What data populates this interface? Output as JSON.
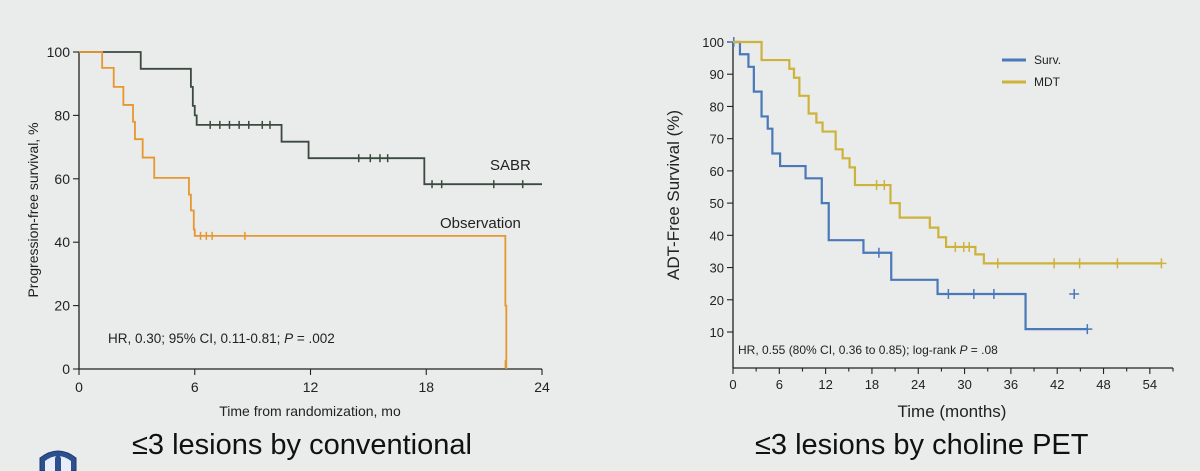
{
  "colors": {
    "background": "#e9ecea",
    "sabr": "#3a4a40",
    "observation": "#e8962e",
    "surv": "#4a78b8",
    "mdt": "#cdb23c"
  },
  "captions": {
    "left": "≤3 lesions by conventional",
    "right": "≤3 lesions by choline PET"
  },
  "logo": {
    "icon": "institution-seal-icon"
  },
  "chart_data": [
    {
      "type": "line",
      "step": true,
      "xlabel": "Time from randomization, mo",
      "ylabel": "Progression-free survival, %",
      "xlim": [
        0,
        24
      ],
      "ylim": [
        0,
        100
      ],
      "xticks": [
        0,
        6,
        12,
        18,
        24
      ],
      "yticks": [
        0,
        20,
        40,
        60,
        80,
        100
      ],
      "grid": false,
      "annotation": {
        "prefix": "HR, 0.30; 95% CI, 0.11-0.81; ",
        "p_label": "P",
        "suffix": " = .002"
      },
      "series": [
        {
          "name": "SABR",
          "color": "#3a4a40",
          "steps": [
            [
              0,
              100
            ],
            [
              3,
              100
            ],
            [
              3.2,
              94.7
            ],
            [
              5.7,
              94.7
            ],
            [
              5.8,
              89
            ],
            [
              5.9,
              83
            ],
            [
              6.0,
              80
            ],
            [
              6.1,
              77
            ],
            [
              10.4,
              77
            ],
            [
              10.5,
              71.7
            ],
            [
              11.8,
              71.7
            ],
            [
              11.9,
              66.5
            ],
            [
              17.8,
              66.5
            ],
            [
              17.9,
              58.3
            ],
            [
              24,
              58.3
            ]
          ],
          "censors": [
            [
              6.8,
              77
            ],
            [
              7.3,
              77
            ],
            [
              7.8,
              77
            ],
            [
              8.3,
              77
            ],
            [
              8.8,
              77
            ],
            [
              9.5,
              77
            ],
            [
              9.9,
              77
            ],
            [
              14.5,
              66.5
            ],
            [
              15.1,
              66.5
            ],
            [
              15.6,
              66.5
            ],
            [
              16.0,
              66.5
            ],
            [
              18.3,
              58.3
            ],
            [
              18.8,
              58.3
            ],
            [
              21.5,
              58.3
            ],
            [
              23,
              58.3
            ]
          ]
        },
        {
          "name": "Observation",
          "color": "#e8962e",
          "steps": [
            [
              0,
              100
            ],
            [
              1.1,
              100
            ],
            [
              1.2,
              95
            ],
            [
              1.7,
              95
            ],
            [
              1.8,
              89
            ],
            [
              2.2,
              89
            ],
            [
              2.3,
              83.3
            ],
            [
              2.7,
              83.3
            ],
            [
              2.8,
              78
            ],
            [
              2.9,
              72.5
            ],
            [
              3.2,
              72.5
            ],
            [
              3.3,
              66.7
            ],
            [
              3.8,
              66.7
            ],
            [
              3.9,
              60.3
            ],
            [
              5.6,
              60.3
            ],
            [
              5.7,
              55
            ],
            [
              5.8,
              50
            ],
            [
              5.95,
              44
            ],
            [
              6.0,
              42
            ],
            [
              22.0,
              42
            ],
            [
              22.1,
              20
            ],
            [
              22.15,
              0
            ]
          ],
          "censors": [
            [
              6.3,
              42
            ],
            [
              6.6,
              42
            ],
            [
              6.9,
              42
            ],
            [
              8.6,
              42
            ],
            [
              22.1,
              1.5
            ]
          ]
        }
      ]
    },
    {
      "type": "line",
      "step": true,
      "xlabel": "Time (months)",
      "ylabel": "ADT-Free Survival (%)",
      "xlim": [
        0,
        57
      ],
      "ylim": [
        10,
        100
      ],
      "xticks": [
        0,
        6,
        12,
        18,
        24,
        30,
        36,
        42,
        48,
        54
      ],
      "minor_xticks": [
        3,
        9,
        15,
        21,
        27,
        33,
        39,
        45,
        51,
        57
      ],
      "yticks": [
        10,
        20,
        30,
        40,
        50,
        60,
        70,
        80,
        90,
        100
      ],
      "grid": false,
      "legend": "top-right",
      "annotation": {
        "prefix": "HR, 0.55 (80% CI, 0.36 to 0.85); log-rank ",
        "p_label": "P",
        "suffix": " = .08"
      },
      "series": [
        {
          "name": "Surv.",
          "color": "#4a78b8",
          "steps": [
            [
              0,
              100
            ],
            [
              0.8,
              100
            ],
            [
              0.9,
              96.2
            ],
            [
              1.9,
              96.2
            ],
            [
              2.0,
              92.3
            ],
            [
              2.6,
              92.3
            ],
            [
              2.7,
              84.6
            ],
            [
              3.6,
              84.6
            ],
            [
              3.7,
              76.9
            ],
            [
              4.4,
              76.9
            ],
            [
              4.5,
              73.1
            ],
            [
              5.0,
              73.1
            ],
            [
              5.1,
              65.4
            ],
            [
              6.0,
              65.4
            ],
            [
              6.1,
              61.5
            ],
            [
              9.3,
              61.5
            ],
            [
              9.4,
              57.7
            ],
            [
              11.4,
              57.7
            ],
            [
              11.5,
              50
            ],
            [
              12.3,
              50
            ],
            [
              12.4,
              38.5
            ],
            [
              16.8,
              38.5
            ],
            [
              16.9,
              34.6
            ],
            [
              20.4,
              34.6
            ],
            [
              20.5,
              26.2
            ],
            [
              26.4,
              26.2
            ],
            [
              26.5,
              21.8
            ],
            [
              37.8,
              21.8
            ],
            [
              37.9,
              10.9
            ],
            [
              45.9,
              10.9
            ]
          ],
          "censors": [
            [
              0.1,
              100
            ],
            [
              18.9,
              34.6
            ],
            [
              27.9,
              21.8
            ],
            [
              31.2,
              21.8
            ],
            [
              33.8,
              21.8
            ],
            [
              44.2,
              21.8
            ],
            [
              45.9,
              10.9
            ]
          ]
        },
        {
          "name": "MDT",
          "color": "#cdb23c",
          "steps": [
            [
              0,
              100
            ],
            [
              3.6,
              100
            ],
            [
              3.7,
              94.4
            ],
            [
              7.2,
              94.4
            ],
            [
              7.3,
              91.7
            ],
            [
              7.8,
              91.7
            ],
            [
              7.9,
              88.9
            ],
            [
              8.5,
              88.9
            ],
            [
              8.6,
              83.3
            ],
            [
              9.7,
              83.3
            ],
            [
              9.8,
              77.8
            ],
            [
              10.7,
              77.8
            ],
            [
              10.8,
              75
            ],
            [
              11.5,
              75
            ],
            [
              11.6,
              72.2
            ],
            [
              13.2,
              72.2
            ],
            [
              13.3,
              66.7
            ],
            [
              14.1,
              66.7
            ],
            [
              14.2,
              63.9
            ],
            [
              15.0,
              63.9
            ],
            [
              15.1,
              61.1
            ],
            [
              15.7,
              61.1
            ],
            [
              15.8,
              55.6
            ],
            [
              20.3,
              55.6
            ],
            [
              20.4,
              50
            ],
            [
              21.5,
              50
            ],
            [
              21.6,
              45.5
            ],
            [
              25.4,
              45.5
            ],
            [
              25.5,
              42.4
            ],
            [
              26.5,
              42.4
            ],
            [
              26.6,
              39.4
            ],
            [
              27.5,
              39.4
            ],
            [
              27.6,
              36.4
            ],
            [
              31.3,
              36.4
            ],
            [
              31.4,
              34.1
            ],
            [
              32.4,
              34.1
            ],
            [
              32.5,
              31.3
            ],
            [
              55.5,
              31.3
            ]
          ],
          "censors": [
            [
              18.6,
              55.6
            ],
            [
              19.6,
              55.6
            ],
            [
              28.8,
              36.4
            ],
            [
              29.9,
              36.4
            ],
            [
              30.6,
              36.4
            ],
            [
              34.3,
              31.3
            ],
            [
              41.6,
              31.3
            ],
            [
              44.9,
              31.3
            ],
            [
              49.8,
              31.3
            ],
            [
              55.5,
              31.3
            ]
          ]
        }
      ]
    }
  ]
}
